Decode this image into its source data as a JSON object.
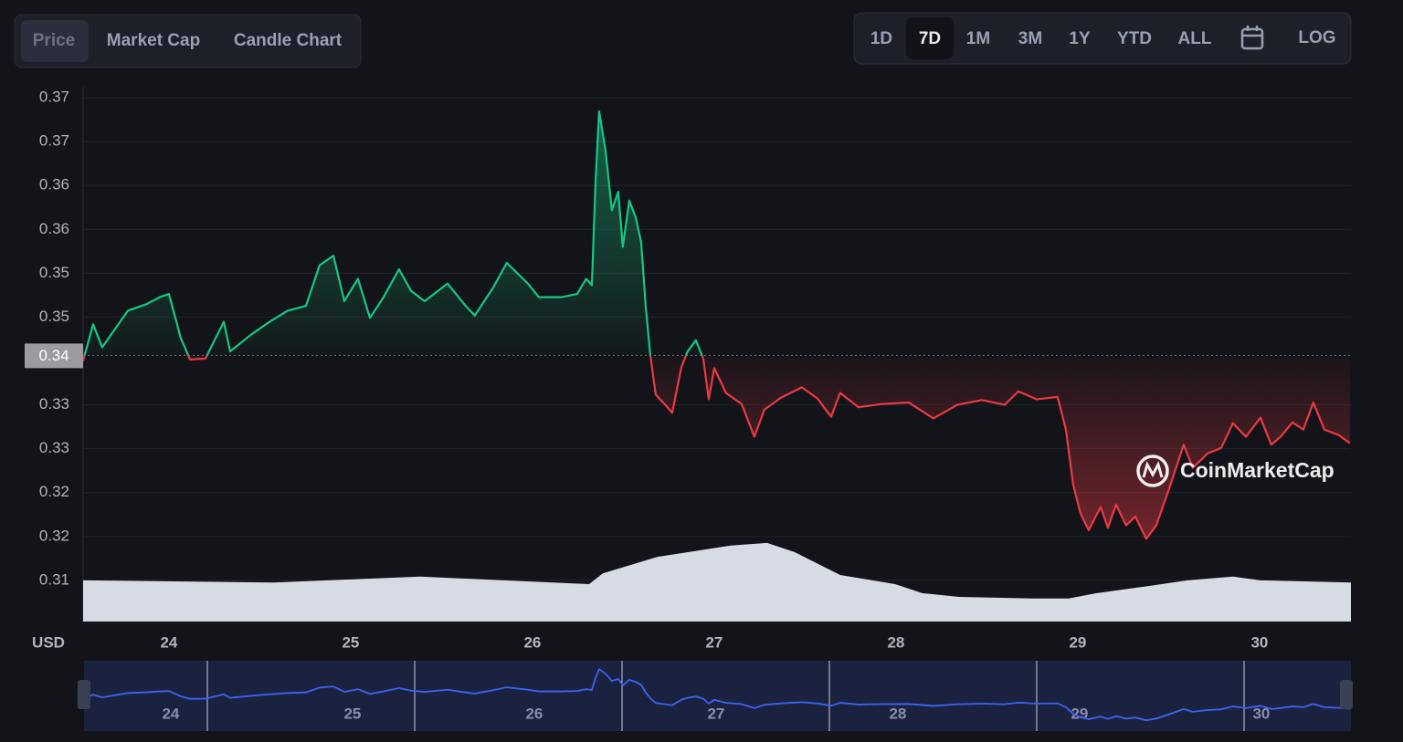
{
  "tabs": [
    "Price",
    "Market Cap",
    "Candle Chart"
  ],
  "ranges": [
    "1D",
    "7D",
    "1M",
    "3M",
    "1Y",
    "YTD",
    "ALL"
  ],
  "log_label": "LOG",
  "watermark": "CoinMarketCap",
  "chart_data": {
    "type": "line",
    "currency": "USD",
    "grid": true,
    "up_color": "#16c784",
    "down_color": "#ea3943",
    "current_price": {
      "value": 0.3412,
      "label": "0.34"
    },
    "xlim": [
      23.528,
      30.503
    ],
    "xticks": [
      24,
      25,
      26,
      27,
      28,
      29,
      30
    ],
    "ylim": [
      0.30784,
      0.37488
    ],
    "yticks": [
      {
        "value": 0.313,
        "label": "0.31"
      },
      {
        "value": 0.3185,
        "label": "0.32"
      },
      {
        "value": 0.324,
        "label": "0.32"
      },
      {
        "value": 0.3295,
        "label": "0.33"
      },
      {
        "value": 0.335,
        "label": "0.33"
      },
      {
        "value": 0.346,
        "label": "0.35"
      },
      {
        "value": 0.3515,
        "label": "0.35"
      },
      {
        "value": 0.357,
        "label": "0.36"
      },
      {
        "value": 0.3625,
        "label": "0.36"
      },
      {
        "value": 0.368,
        "label": "0.37"
      },
      {
        "value": 0.3735,
        "label": "0.37"
      }
    ],
    "x": [
      23.528,
      23.583,
      23.633,
      23.774,
      23.874,
      23.95,
      24.0,
      24.065,
      24.116,
      24.201,
      24.302,
      24.337,
      24.452,
      24.553,
      24.653,
      24.754,
      24.829,
      24.905,
      24.965,
      25.04,
      25.106,
      25.181,
      25.266,
      25.332,
      25.407,
      25.533,
      25.633,
      25.683,
      25.784,
      25.859,
      25.975,
      26.035,
      26.161,
      26.246,
      26.296,
      26.327,
      26.347,
      26.367,
      26.402,
      26.437,
      26.472,
      26.497,
      26.533,
      26.568,
      26.598,
      26.623,
      26.648,
      26.678,
      26.739,
      26.769,
      26.819,
      26.854,
      26.899,
      26.94,
      26.97,
      27.0,
      27.065,
      27.151,
      27.221,
      27.276,
      27.367,
      27.482,
      27.568,
      27.643,
      27.693,
      27.794,
      27.92,
      28.07,
      28.206,
      28.337,
      28.472,
      28.598,
      28.673,
      28.774,
      28.889,
      28.935,
      28.975,
      29.015,
      29.06,
      29.126,
      29.166,
      29.211,
      29.266,
      29.317,
      29.377,
      29.432,
      29.503,
      29.583,
      29.633,
      29.714,
      29.789,
      29.854,
      29.925,
      30.005,
      30.065,
      30.116,
      30.181,
      30.241,
      30.296,
      30.357,
      30.437,
      30.497
    ],
    "values": [
      0.3405,
      0.3451,
      0.3422,
      0.3468,
      0.3476,
      0.3485,
      0.3489,
      0.3434,
      0.3407,
      0.3408,
      0.3454,
      0.3417,
      0.3438,
      0.3454,
      0.3468,
      0.3474,
      0.3525,
      0.3537,
      0.348,
      0.3508,
      0.3459,
      0.3485,
      0.352,
      0.3493,
      0.348,
      0.3502,
      0.3474,
      0.3462,
      0.3497,
      0.3528,
      0.3502,
      0.3485,
      0.3485,
      0.3489,
      0.3508,
      0.35,
      0.3629,
      0.3718,
      0.3669,
      0.3594,
      0.3617,
      0.3548,
      0.3606,
      0.3585,
      0.3554,
      0.3474,
      0.3413,
      0.3363,
      0.3348,
      0.334,
      0.3397,
      0.3417,
      0.3431,
      0.3408,
      0.3357,
      0.3396,
      0.3365,
      0.3351,
      0.331,
      0.3344,
      0.3359,
      0.3372,
      0.3358,
      0.3335,
      0.3365,
      0.3347,
      0.3351,
      0.3353,
      0.3333,
      0.335,
      0.3356,
      0.335,
      0.3367,
      0.3357,
      0.336,
      0.3319,
      0.325,
      0.3214,
      0.3193,
      0.3222,
      0.3196,
      0.3225,
      0.3199,
      0.321,
      0.3182,
      0.3199,
      0.3245,
      0.33,
      0.3271,
      0.3289,
      0.3296,
      0.3327,
      0.331,
      0.3334,
      0.33,
      0.331,
      0.3328,
      0.3319,
      0.3353,
      0.3319,
      0.3312,
      0.3302
    ],
    "y2lim": [
      0,
      100
    ],
    "volume": {
      "axis": "y2",
      "color": "#d7dbe6",
      "x": [
        23.528,
        24.578,
        25.382,
        26.312,
        26.387,
        26.688,
        27.09,
        27.291,
        27.442,
        27.693,
        27.995,
        28.146,
        28.347,
        28.749,
        28.95,
        29.101,
        29.402,
        29.603,
        29.854,
        30.005,
        30.503
      ],
      "values": [
        7.7,
        7.3,
        8.4,
        7.0,
        9.0,
        12.1,
        14.2,
        14.7,
        13.0,
        8.7,
        7.0,
        5.3,
        4.6,
        4.3,
        4.3,
        5.3,
        6.7,
        7.7,
        8.4,
        7.7,
        7.3
      ]
    }
  }
}
